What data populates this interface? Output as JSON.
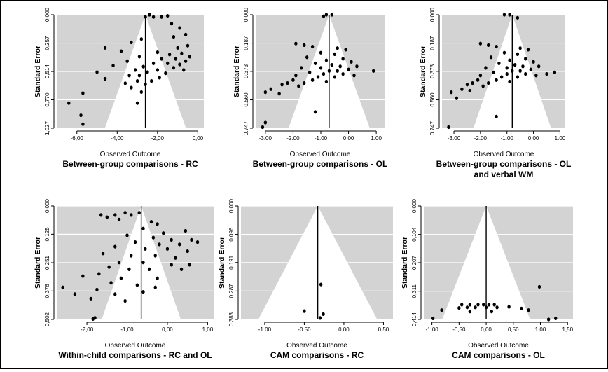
{
  "chart_data": [
    {
      "type": "scatter",
      "title": "Between-group comparisons - RC",
      "xlabel": "Observed Outcome",
      "ylabel": "Standard Error",
      "xlim": [
        -7.0,
        0.3
      ],
      "ylim": [
        0.0,
        1.027
      ],
      "y_reversed": true,
      "xticks": [
        -6.0,
        -4.0,
        -2.0,
        0.0
      ],
      "xtick_labels": [
        "-6,00",
        "-4,00",
        "-2,00",
        "0,00"
      ],
      "yticks": [
        0.0,
        0.257,
        0.514,
        0.77,
        1.027
      ],
      "ytick_labels": [
        "0,000",
        "0,257",
        "0,514",
        "0,770",
        "1,027"
      ],
      "funnel_center": -2.6,
      "points": [
        {
          "x": -2.6,
          "y": 0.02
        },
        {
          "x": -2.4,
          "y": 0.0
        },
        {
          "x": -2.2,
          "y": 0.02
        },
        {
          "x": -1.8,
          "y": 0.02
        },
        {
          "x": -1.5,
          "y": 0.01
        },
        {
          "x": -1.3,
          "y": 0.08
        },
        {
          "x": -0.9,
          "y": 0.12
        },
        {
          "x": -0.6,
          "y": 0.18
        },
        {
          "x": -1.2,
          "y": 0.2
        },
        {
          "x": -2.8,
          "y": 0.22
        },
        {
          "x": -3.3,
          "y": 0.25
        },
        {
          "x": -0.5,
          "y": 0.28
        },
        {
          "x": -4.6,
          "y": 0.3
        },
        {
          "x": -1.0,
          "y": 0.3
        },
        {
          "x": -3.8,
          "y": 0.33
        },
        {
          "x": -2.0,
          "y": 0.34
        },
        {
          "x": -0.8,
          "y": 0.35
        },
        {
          "x": -1.4,
          "y": 0.36
        },
        {
          "x": -2.9,
          "y": 0.38
        },
        {
          "x": -0.4,
          "y": 0.38
        },
        {
          "x": -1.8,
          "y": 0.4
        },
        {
          "x": -1.1,
          "y": 0.4
        },
        {
          "x": -3.5,
          "y": 0.42
        },
        {
          "x": -0.6,
          "y": 0.42
        },
        {
          "x": -2.2,
          "y": 0.44
        },
        {
          "x": -1.5,
          "y": 0.44
        },
        {
          "x": -0.9,
          "y": 0.45
        },
        {
          "x": -4.2,
          "y": 0.46
        },
        {
          "x": -2.7,
          "y": 0.47
        },
        {
          "x": -1.2,
          "y": 0.48
        },
        {
          "x": -3.1,
          "y": 0.5
        },
        {
          "x": -2.0,
          "y": 0.5
        },
        {
          "x": -0.7,
          "y": 0.5
        },
        {
          "x": -5.0,
          "y": 0.52
        },
        {
          "x": -2.5,
          "y": 0.52
        },
        {
          "x": -1.6,
          "y": 0.53
        },
        {
          "x": -3.4,
          "y": 0.55
        },
        {
          "x": -2.9,
          "y": 0.55
        },
        {
          "x": -1.9,
          "y": 0.57
        },
        {
          "x": -4.6,
          "y": 0.58
        },
        {
          "x": -3.0,
          "y": 0.6
        },
        {
          "x": -2.3,
          "y": 0.6
        },
        {
          "x": -3.6,
          "y": 0.62
        },
        {
          "x": -2.6,
          "y": 0.63
        },
        {
          "x": -3.3,
          "y": 0.66
        },
        {
          "x": -2.8,
          "y": 0.7
        },
        {
          "x": -5.7,
          "y": 0.71
        },
        {
          "x": -6.4,
          "y": 0.8
        },
        {
          "x": -3.0,
          "y": 0.8
        },
        {
          "x": -5.8,
          "y": 0.91
        },
        {
          "x": -5.7,
          "y": 0.99
        }
      ]
    },
    {
      "type": "scatter",
      "title": "Between-group comparisons - OL",
      "xlabel": "Observed Outcome",
      "ylabel": "Standard Error",
      "xlim": [
        -3.35,
        1.3
      ],
      "ylim": [
        0.0,
        0.747
      ],
      "y_reversed": true,
      "xticks": [
        -3.0,
        -2.0,
        -1.0,
        0.0,
        1.0
      ],
      "xtick_labels": [
        "-3.00",
        "-2.00",
        "-1.00",
        "0.00",
        "1.00"
      ],
      "yticks": [
        0.0,
        0.187,
        0.373,
        0.56,
        0.747
      ],
      "ytick_labels": [
        "0.000",
        "0.187",
        "0.373",
        "0.560",
        "0.747"
      ],
      "funnel_center": -0.7,
      "points": [
        {
          "x": -0.8,
          "y": 0.0
        },
        {
          "x": -0.6,
          "y": 0.0
        },
        {
          "x": -0.9,
          "y": 0.01
        },
        {
          "x": -1.9,
          "y": 0.19
        },
        {
          "x": -1.6,
          "y": 0.2
        },
        {
          "x": -1.3,
          "y": 0.21
        },
        {
          "x": -0.4,
          "y": 0.22
        },
        {
          "x": -0.1,
          "y": 0.23
        },
        {
          "x": -1.0,
          "y": 0.25
        },
        {
          "x": -0.5,
          "y": 0.26
        },
        {
          "x": -1.5,
          "y": 0.28
        },
        {
          "x": -0.2,
          "y": 0.29
        },
        {
          "x": -0.8,
          "y": 0.3
        },
        {
          "x": 0.1,
          "y": 0.31
        },
        {
          "x": -1.2,
          "y": 0.32
        },
        {
          "x": -0.6,
          "y": 0.33
        },
        {
          "x": -0.3,
          "y": 0.34
        },
        {
          "x": 0.3,
          "y": 0.34
        },
        {
          "x": -1.7,
          "y": 0.35
        },
        {
          "x": -1.0,
          "y": 0.35
        },
        {
          "x": 0.0,
          "y": 0.36
        },
        {
          "x": -0.7,
          "y": 0.37
        },
        {
          "x": -0.4,
          "y": 0.37
        },
        {
          "x": -1.4,
          "y": 0.38
        },
        {
          "x": -0.9,
          "y": 0.39
        },
        {
          "x": -0.2,
          "y": 0.39
        },
        {
          "x": 0.2,
          "y": 0.4
        },
        {
          "x": -1.9,
          "y": 0.4
        },
        {
          "x": -1.1,
          "y": 0.41
        },
        {
          "x": -0.5,
          "y": 0.41
        },
        {
          "x": 0.9,
          "y": 0.37
        },
        {
          "x": -2.0,
          "y": 0.43
        },
        {
          "x": -1.3,
          "y": 0.43
        },
        {
          "x": -0.8,
          "y": 0.44
        },
        {
          "x": -2.2,
          "y": 0.45
        },
        {
          "x": -1.6,
          "y": 0.45
        },
        {
          "x": -2.4,
          "y": 0.46
        },
        {
          "x": -1.8,
          "y": 0.47
        },
        {
          "x": -2.8,
          "y": 0.49
        },
        {
          "x": -3.0,
          "y": 0.51
        },
        {
          "x": -2.5,
          "y": 0.52
        },
        {
          "x": -1.2,
          "y": 0.64
        },
        {
          "x": -3.0,
          "y": 0.71
        },
        {
          "x": -3.1,
          "y": 0.74
        }
      ]
    },
    {
      "type": "scatter",
      "title": "Between-group comparisons - OL and verbal WM",
      "xlabel": "Observed Outcome",
      "ylabel": "Standard Error",
      "xlim": [
        -3.45,
        1.2
      ],
      "ylim": [
        0.0,
        0.747
      ],
      "y_reversed": true,
      "xticks": [
        -3.0,
        -2.0,
        -1.0,
        0.0,
        1.0
      ],
      "xtick_labels": [
        "-3.00",
        "-2.00",
        "-1.00",
        "0.00",
        "1.00"
      ],
      "yticks": [
        0.0,
        0.187,
        0.373,
        0.56,
        0.747
      ],
      "ytick_labels": [
        "0.000",
        "0.187",
        "0.373",
        "0.560",
        "0.747"
      ],
      "funnel_center": -0.8,
      "points": [
        {
          "x": -1.1,
          "y": 0.0
        },
        {
          "x": -0.9,
          "y": 0.0
        },
        {
          "x": -0.6,
          "y": 0.02
        },
        {
          "x": -2.0,
          "y": 0.19
        },
        {
          "x": -1.7,
          "y": 0.2
        },
        {
          "x": -1.4,
          "y": 0.21
        },
        {
          "x": -0.5,
          "y": 0.22
        },
        {
          "x": -0.2,
          "y": 0.23
        },
        {
          "x": -1.1,
          "y": 0.25
        },
        {
          "x": -0.6,
          "y": 0.26
        },
        {
          "x": -1.6,
          "y": 0.28
        },
        {
          "x": -0.3,
          "y": 0.29
        },
        {
          "x": -0.9,
          "y": 0.3
        },
        {
          "x": 0.0,
          "y": 0.31
        },
        {
          "x": -1.3,
          "y": 0.32
        },
        {
          "x": -0.7,
          "y": 0.33
        },
        {
          "x": -0.4,
          "y": 0.34
        },
        {
          "x": 0.2,
          "y": 0.34
        },
        {
          "x": -1.8,
          "y": 0.35
        },
        {
          "x": -1.0,
          "y": 0.35
        },
        {
          "x": -0.1,
          "y": 0.36
        },
        {
          "x": -0.8,
          "y": 0.37
        },
        {
          "x": -0.5,
          "y": 0.37
        },
        {
          "x": -1.5,
          "y": 0.38
        },
        {
          "x": -1.0,
          "y": 0.39
        },
        {
          "x": -0.3,
          "y": 0.39
        },
        {
          "x": 0.1,
          "y": 0.4
        },
        {
          "x": -2.0,
          "y": 0.4
        },
        {
          "x": -1.2,
          "y": 0.41
        },
        {
          "x": -0.6,
          "y": 0.41
        },
        {
          "x": 0.8,
          "y": 0.38
        },
        {
          "x": 0.5,
          "y": 0.39
        },
        {
          "x": -2.1,
          "y": 0.43
        },
        {
          "x": -1.4,
          "y": 0.43
        },
        {
          "x": -0.9,
          "y": 0.44
        },
        {
          "x": -2.3,
          "y": 0.45
        },
        {
          "x": -1.7,
          "y": 0.45
        },
        {
          "x": -2.5,
          "y": 0.46
        },
        {
          "x": -1.9,
          "y": 0.47
        },
        {
          "x": -2.7,
          "y": 0.49
        },
        {
          "x": -2.4,
          "y": 0.5
        },
        {
          "x": -3.1,
          "y": 0.51
        },
        {
          "x": -2.9,
          "y": 0.55
        },
        {
          "x": -1.4,
          "y": 0.67
        },
        {
          "x": -3.2,
          "y": 0.74
        }
      ]
    },
    {
      "type": "scatter",
      "title": "Within-child comparisons - RC and OL",
      "xlabel": "Observed Outcome",
      "ylabel": "Standard Error",
      "xlim": [
        -2.75,
        1.15
      ],
      "ylim": [
        0.0,
        0.502
      ],
      "y_reversed": true,
      "xticks": [
        -2.0,
        -1.0,
        0.0,
        1.0
      ],
      "xtick_labels": [
        "-2,00",
        "-1,00",
        "0,00",
        "1,00"
      ],
      "yticks": [
        0.0,
        0.125,
        0.251,
        0.376,
        0.502
      ],
      "ytick_labels": [
        "0,000",
        "0,125",
        "0,251",
        "0,376",
        "0,502"
      ],
      "funnel_center": -0.65,
      "points": [
        {
          "x": -1.65,
          "y": 0.04
        },
        {
          "x": -1.5,
          "y": 0.05
        },
        {
          "x": -1.3,
          "y": 0.04
        },
        {
          "x": -1.05,
          "y": 0.03
        },
        {
          "x": -0.9,
          "y": 0.04
        },
        {
          "x": -0.7,
          "y": 0.03
        },
        {
          "x": -1.2,
          "y": 0.06
        },
        {
          "x": -0.4,
          "y": 0.07
        },
        {
          "x": -0.25,
          "y": 0.08
        },
        {
          "x": -0.6,
          "y": 0.1
        },
        {
          "x": -0.1,
          "y": 0.12
        },
        {
          "x": 0.45,
          "y": 0.11
        },
        {
          "x": -1.0,
          "y": 0.13
        },
        {
          "x": -0.35,
          "y": 0.14
        },
        {
          "x": 0.1,
          "y": 0.15
        },
        {
          "x": 0.6,
          "y": 0.15
        },
        {
          "x": -0.8,
          "y": 0.16
        },
        {
          "x": -0.2,
          "y": 0.17
        },
        {
          "x": 0.3,
          "y": 0.17
        },
        {
          "x": 0.75,
          "y": 0.16
        },
        {
          "x": -1.3,
          "y": 0.18
        },
        {
          "x": -0.55,
          "y": 0.19
        },
        {
          "x": 0.0,
          "y": 0.19
        },
        {
          "x": 0.5,
          "y": 0.2
        },
        {
          "x": -1.6,
          "y": 0.21
        },
        {
          "x": -0.9,
          "y": 0.22
        },
        {
          "x": -0.3,
          "y": 0.22
        },
        {
          "x": 0.2,
          "y": 0.23
        },
        {
          "x": -1.2,
          "y": 0.25
        },
        {
          "x": -0.6,
          "y": 0.25
        },
        {
          "x": 0.1,
          "y": 0.26
        },
        {
          "x": 0.55,
          "y": 0.26
        },
        {
          "x": -1.45,
          "y": 0.27
        },
        {
          "x": -0.95,
          "y": 0.28
        },
        {
          "x": -0.45,
          "y": 0.28
        },
        {
          "x": 0.35,
          "y": 0.28
        },
        {
          "x": -1.7,
          "y": 0.3
        },
        {
          "x": -2.1,
          "y": 0.31
        },
        {
          "x": -1.15,
          "y": 0.32
        },
        {
          "x": -0.25,
          "y": 0.32
        },
        {
          "x": -1.4,
          "y": 0.34
        },
        {
          "x": -0.75,
          "y": 0.35
        },
        {
          "x": -2.6,
          "y": 0.36
        },
        {
          "x": -1.75,
          "y": 0.37
        },
        {
          "x": -0.3,
          "y": 0.36
        },
        {
          "x": -2.3,
          "y": 0.39
        },
        {
          "x": -1.3,
          "y": 0.39
        },
        {
          "x": -0.6,
          "y": 0.38
        },
        {
          "x": -1.9,
          "y": 0.41
        },
        {
          "x": -1.05,
          "y": 0.42
        },
        {
          "x": -1.85,
          "y": 0.5
        },
        {
          "x": -1.8,
          "y": 0.495
        }
      ]
    },
    {
      "type": "scatter",
      "title": "CAM comparisons - RC",
      "xlabel": "Observed Outcome",
      "ylabel": "Standard Error",
      "xlim": [
        -1.3,
        0.62
      ],
      "ylim": [
        0.0,
        0.383
      ],
      "y_reversed": true,
      "xticks": [
        -1.0,
        -0.5,
        0.0,
        0.5
      ],
      "xtick_labels": [
        "-1.00",
        "-0.50",
        "0.00",
        "0.50"
      ],
      "yticks": [
        0.0,
        0.096,
        0.191,
        0.287,
        0.383
      ],
      "ytick_labels": [
        "0.000",
        "0.096",
        "0.191",
        "0.287",
        "0.383"
      ],
      "funnel_center": -0.33,
      "points": [
        {
          "x": -0.29,
          "y": 0.265
        },
        {
          "x": -0.5,
          "y": 0.355
        },
        {
          "x": -0.26,
          "y": 0.365
        },
        {
          "x": -0.3,
          "y": 0.378
        }
      ]
    },
    {
      "type": "scatter",
      "title": "CAM comparisons - OL",
      "xlabel": "Observed Outcome",
      "ylabel": "Standard Error",
      "xlim": [
        -1.15,
        1.6
      ],
      "ylim": [
        0.0,
        0.414
      ],
      "y_reversed": true,
      "xticks": [
        -1.0,
        -0.5,
        0.0,
        0.5,
        1.0,
        1.5
      ],
      "xtick_labels": [
        "-1,00",
        "-0,50",
        "0,00",
        "0,50",
        "1,00",
        "1,50"
      ],
      "yticks": [
        0.0,
        0.104,
        0.207,
        0.311,
        0.414
      ],
      "ytick_labels": [
        "0,000",
        "0,104",
        "0,207",
        "0,311",
        "0,414"
      ],
      "funnel_center": 0.0,
      "points": [
        {
          "x": 0.98,
          "y": 0.295
        },
        {
          "x": -0.45,
          "y": 0.36
        },
        {
          "x": -0.3,
          "y": 0.36
        },
        {
          "x": -0.15,
          "y": 0.36
        },
        {
          "x": -0.05,
          "y": 0.36
        },
        {
          "x": 0.05,
          "y": 0.36
        },
        {
          "x": 0.15,
          "y": 0.36
        },
        {
          "x": -0.35,
          "y": 0.37
        },
        {
          "x": -0.2,
          "y": 0.37
        },
        {
          "x": 0.0,
          "y": 0.37
        },
        {
          "x": 0.2,
          "y": 0.37
        },
        {
          "x": 0.42,
          "y": 0.368
        },
        {
          "x": -0.5,
          "y": 0.372
        },
        {
          "x": 0.65,
          "y": 0.374
        },
        {
          "x": 0.78,
          "y": 0.38
        },
        {
          "x": -0.3,
          "y": 0.385
        },
        {
          "x": 0.1,
          "y": 0.385
        },
        {
          "x": -0.82,
          "y": 0.38
        },
        {
          "x": -0.98,
          "y": 0.41
        },
        {
          "x": 1.15,
          "y": 0.414
        },
        {
          "x": 1.28,
          "y": 0.41
        }
      ]
    }
  ]
}
